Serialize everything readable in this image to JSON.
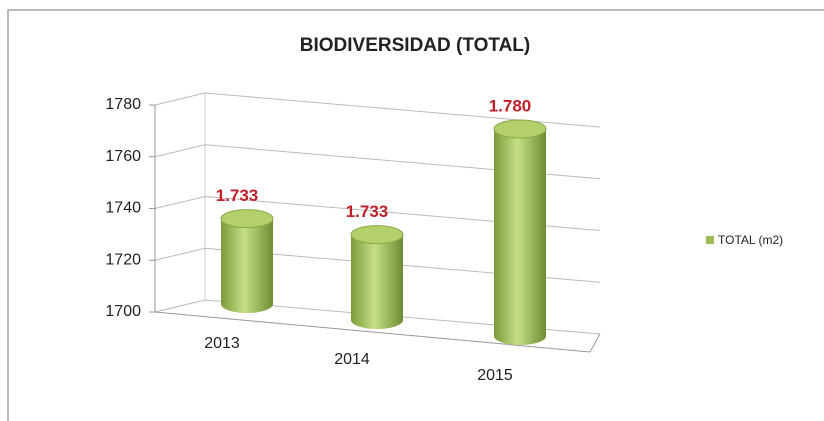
{
  "chart_data": {
    "type": "bar",
    "title": "BIODIVERSIDAD (TOTAL)",
    "categories": [
      "2013",
      "2014",
      "2015"
    ],
    "series": [
      {
        "name": "TOTAL (m2)",
        "color": "#9bbb59",
        "values": [
          1733,
          1733,
          1780
        ],
        "value_labels": [
          "1.733",
          "1.733",
          "1.780"
        ]
      }
    ],
    "ylim": [
      1700,
      1780
    ],
    "yticks": [
      1700,
      1720,
      1740,
      1760,
      1780
    ],
    "grid": true,
    "legend": "right"
  }
}
